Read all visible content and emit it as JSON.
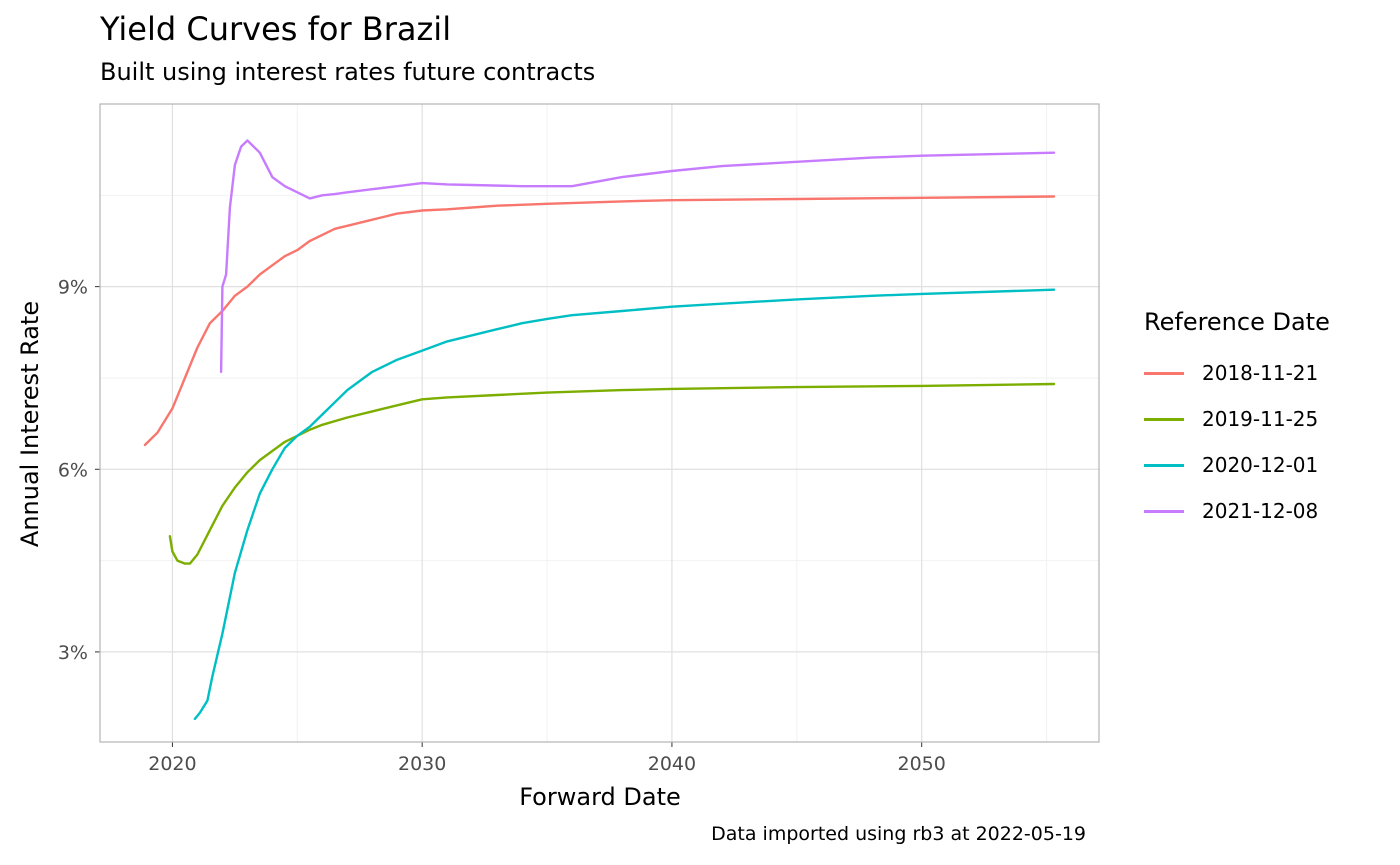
{
  "title": "Yield Curves for Brazil",
  "subtitle": "Built using interest rates future contracts",
  "caption": "Data imported using rb3 at 2022-05-19",
  "chart_data": {
    "type": "line",
    "title": "Yield Curves for Brazil",
    "subtitle": "Built using interest rates future contracts",
    "xlabel": "Forward Date",
    "ylabel": "Annual Interest Rate",
    "xlim": [
      2017.1,
      2057.1
    ],
    "ylim": [
      1.52,
      12.0
    ],
    "x_ticks": [
      2020,
      2030,
      2040,
      2050
    ],
    "y_ticks": [
      3,
      6,
      9
    ],
    "y_tick_labels": [
      "3%",
      "6%",
      "9%"
    ],
    "grid": true,
    "legend_title": "Reference Date",
    "legend_position": "right",
    "series": [
      {
        "name": "2018-11-21",
        "color": "#F8766D",
        "points": [
          [
            2018.9,
            6.4
          ],
          [
            2019.4,
            6.6
          ],
          [
            2020.0,
            7.0
          ],
          [
            2020.5,
            7.5
          ],
          [
            2021.0,
            8.0
          ],
          [
            2021.5,
            8.4
          ],
          [
            2022.0,
            8.6
          ],
          [
            2022.5,
            8.85
          ],
          [
            2023.0,
            9.0
          ],
          [
            2023.5,
            9.2
          ],
          [
            2024.0,
            9.35
          ],
          [
            2024.5,
            9.5
          ],
          [
            2025.0,
            9.6
          ],
          [
            2025.5,
            9.75
          ],
          [
            2026.0,
            9.85
          ],
          [
            2026.5,
            9.95
          ],
          [
            2027.0,
            10.0
          ],
          [
            2028.0,
            10.1
          ],
          [
            2029.0,
            10.2
          ],
          [
            2030.0,
            10.25
          ],
          [
            2031.0,
            10.27
          ],
          [
            2032.0,
            10.3
          ],
          [
            2033.0,
            10.33
          ],
          [
            2035.0,
            10.36
          ],
          [
            2038.0,
            10.4
          ],
          [
            2040.0,
            10.42
          ],
          [
            2045.0,
            10.44
          ],
          [
            2050.0,
            10.46
          ],
          [
            2055.3,
            10.48
          ]
        ]
      },
      {
        "name": "2019-11-25",
        "color": "#7CAE00",
        "points": [
          [
            2019.9,
            4.9
          ],
          [
            2020.0,
            4.65
          ],
          [
            2020.2,
            4.5
          ],
          [
            2020.5,
            4.45
          ],
          [
            2020.7,
            4.45
          ],
          [
            2021.0,
            4.6
          ],
          [
            2021.5,
            5.0
          ],
          [
            2022.0,
            5.4
          ],
          [
            2022.5,
            5.7
          ],
          [
            2023.0,
            5.95
          ],
          [
            2023.5,
            6.15
          ],
          [
            2024.0,
            6.3
          ],
          [
            2024.5,
            6.45
          ],
          [
            2025.0,
            6.55
          ],
          [
            2025.5,
            6.65
          ],
          [
            2026.0,
            6.73
          ],
          [
            2027.0,
            6.85
          ],
          [
            2028.0,
            6.95
          ],
          [
            2029.0,
            7.05
          ],
          [
            2030.0,
            7.15
          ],
          [
            2031.0,
            7.18
          ],
          [
            2033.0,
            7.22
          ],
          [
            2035.0,
            7.26
          ],
          [
            2038.0,
            7.3
          ],
          [
            2040.0,
            7.32
          ],
          [
            2045.0,
            7.35
          ],
          [
            2050.0,
            7.37
          ],
          [
            2055.3,
            7.4
          ]
        ]
      },
      {
        "name": "2020-12-01",
        "color": "#00BFC4",
        "points": [
          [
            2020.9,
            1.9
          ],
          [
            2021.1,
            2.0
          ],
          [
            2021.4,
            2.2
          ],
          [
            2021.6,
            2.6
          ],
          [
            2022.0,
            3.3
          ],
          [
            2022.5,
            4.3
          ],
          [
            2023.0,
            5.0
          ],
          [
            2023.5,
            5.6
          ],
          [
            2024.0,
            6.0
          ],
          [
            2024.5,
            6.35
          ],
          [
            2025.0,
            6.55
          ],
          [
            2025.5,
            6.7
          ],
          [
            2026.0,
            6.9
          ],
          [
            2026.5,
            7.1
          ],
          [
            2027.0,
            7.3
          ],
          [
            2027.5,
            7.45
          ],
          [
            2028.0,
            7.6
          ],
          [
            2028.5,
            7.7
          ],
          [
            2029.0,
            7.8
          ],
          [
            2030.0,
            7.95
          ],
          [
            2031.0,
            8.1
          ],
          [
            2032.0,
            8.2
          ],
          [
            2033.0,
            8.3
          ],
          [
            2034.0,
            8.4
          ],
          [
            2035.0,
            8.47
          ],
          [
            2036.0,
            8.53
          ],
          [
            2038.0,
            8.6
          ],
          [
            2040.0,
            8.67
          ],
          [
            2042.0,
            8.72
          ],
          [
            2045.0,
            8.79
          ],
          [
            2048.0,
            8.85
          ],
          [
            2050.0,
            8.88
          ],
          [
            2055.3,
            8.95
          ]
        ]
      },
      {
        "name": "2021-12-08",
        "color": "#C77CFF",
        "points": [
          [
            2021.95,
            7.6
          ],
          [
            2022.0,
            9.0
          ],
          [
            2022.15,
            9.2
          ],
          [
            2022.3,
            10.3
          ],
          [
            2022.5,
            11.0
          ],
          [
            2022.75,
            11.3
          ],
          [
            2023.0,
            11.4
          ],
          [
            2023.5,
            11.2
          ],
          [
            2024.0,
            10.8
          ],
          [
            2024.5,
            10.65
          ],
          [
            2025.0,
            10.55
          ],
          [
            2025.5,
            10.45
          ],
          [
            2026.0,
            10.5
          ],
          [
            2026.5,
            10.52
          ],
          [
            2027.0,
            10.55
          ],
          [
            2028.0,
            10.6
          ],
          [
            2029.0,
            10.65
          ],
          [
            2030.0,
            10.7
          ],
          [
            2031.0,
            10.68
          ],
          [
            2032.0,
            10.67
          ],
          [
            2034.0,
            10.65
          ],
          [
            2036.0,
            10.65
          ],
          [
            2038.0,
            10.8
          ],
          [
            2040.0,
            10.9
          ],
          [
            2042.0,
            10.98
          ],
          [
            2045.0,
            11.05
          ],
          [
            2048.0,
            11.12
          ],
          [
            2050.0,
            11.15
          ],
          [
            2055.3,
            11.2
          ]
        ]
      }
    ]
  }
}
